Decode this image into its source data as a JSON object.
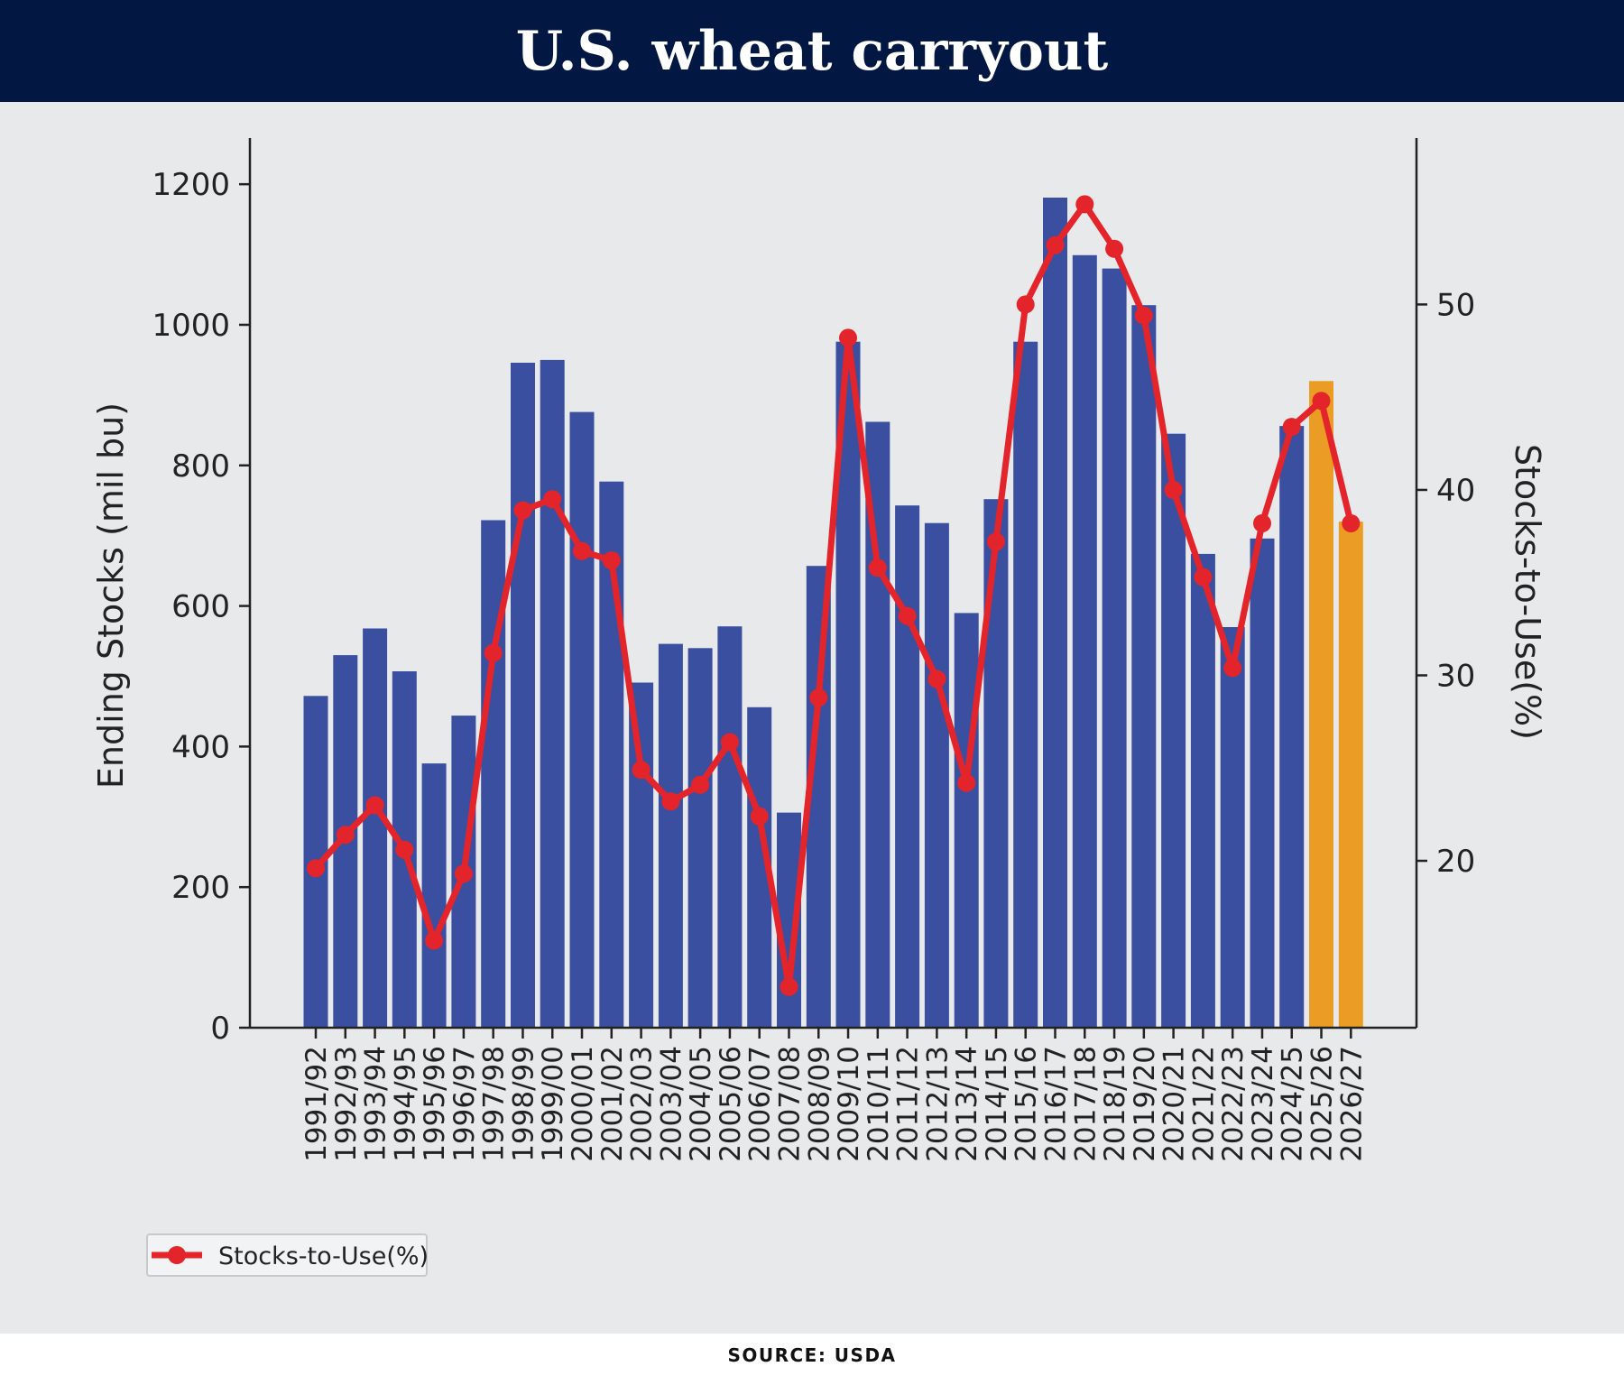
{
  "header": {
    "title": "U.S. wheat carryout"
  },
  "footer": {
    "source": "SOURCE: USDA"
  },
  "chart_data": {
    "type": "bar",
    "categories": [
      "1991/92",
      "1992/93",
      "1993/94",
      "1994/95",
      "1995/96",
      "1996/97",
      "1997/98",
      "1998/99",
      "1999/00",
      "2000/01",
      "2001/02",
      "2002/03",
      "2003/04",
      "2004/05",
      "2005/06",
      "2006/07",
      "2007/08",
      "2008/09",
      "2009/10",
      "2010/11",
      "2011/12",
      "2012/13",
      "2013/14",
      "2014/15",
      "2015/16",
      "2016/17",
      "2017/18",
      "2018/19",
      "2019/20",
      "2020/21",
      "2021/22",
      "2022/23",
      "2023/24",
      "2024/25",
      "2025/26",
      "2026/27"
    ],
    "series": [
      {
        "axis": "left",
        "kind": "bar",
        "values": [
          472,
          530,
          568,
          507,
          376,
          444,
          722,
          946,
          950,
          876,
          777,
          491,
          546,
          540,
          571,
          456,
          306,
          657,
          976,
          862,
          743,
          718,
          590,
          752,
          976,
          1181,
          1099,
          1080,
          1028,
          845,
          674,
          570,
          696,
          856,
          920,
          720
        ],
        "color": "#3a4f9f",
        "highlight": {
          "indices": [
            34,
            35
          ],
          "color": "#eb9c24"
        }
      },
      {
        "name": "Stocks-to-Use(%)",
        "axis": "right",
        "kind": "line",
        "values": [
          19.6,
          21.4,
          23.0,
          20.6,
          15.7,
          19.3,
          31.2,
          38.9,
          39.5,
          36.7,
          36.2,
          24.9,
          23.2,
          24.1,
          26.4,
          22.4,
          13.2,
          28.8,
          48.2,
          35.8,
          33.2,
          29.8,
          24.2,
          37.2,
          50.0,
          53.2,
          55.4,
          53.0,
          49.4,
          40.0,
          35.3,
          30.4,
          38.2,
          43.4,
          44.8,
          38.2
        ],
        "color": "#e3242b"
      }
    ],
    "ylabel": "Ending Stocks (mil bu)",
    "ylim": [
      0,
      1240
    ],
    "yticks": [
      0,
      200,
      400,
      600,
      800,
      1000,
      1200
    ],
    "y2label": "Stocks-to-Use(%)",
    "y2lim": [
      11.0,
      58.0
    ],
    "y2ticks": [
      20,
      30,
      40,
      50
    ],
    "grid": false,
    "legend_placement": "bottom-left"
  }
}
